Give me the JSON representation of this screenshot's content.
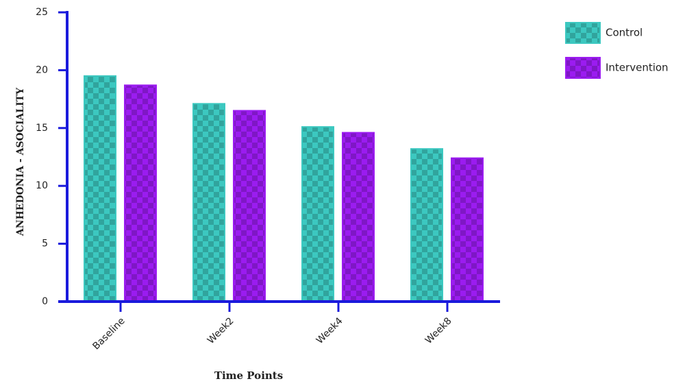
{
  "chart_data": {
    "type": "bar",
    "y_label": "ANHEDONIA - ASOCIALITY",
    "x_label": "Time Points",
    "categories": [
      "Baseline",
      "Week2",
      "Week4",
      "Week8"
    ],
    "series": [
      {
        "name": "Control",
        "color": "#3cc8c0",
        "values": [
          19.5,
          17.1,
          15.1,
          13.2
        ]
      },
      {
        "name": "Intervention",
        "color": "#9b1cf0",
        "values": [
          18.7,
          16.5,
          14.6,
          12.4
        ]
      }
    ],
    "ylim": [
      0,
      25
    ],
    "yticks": [
      0,
      5,
      10,
      15,
      20,
      25
    ],
    "legend": "top-right"
  }
}
